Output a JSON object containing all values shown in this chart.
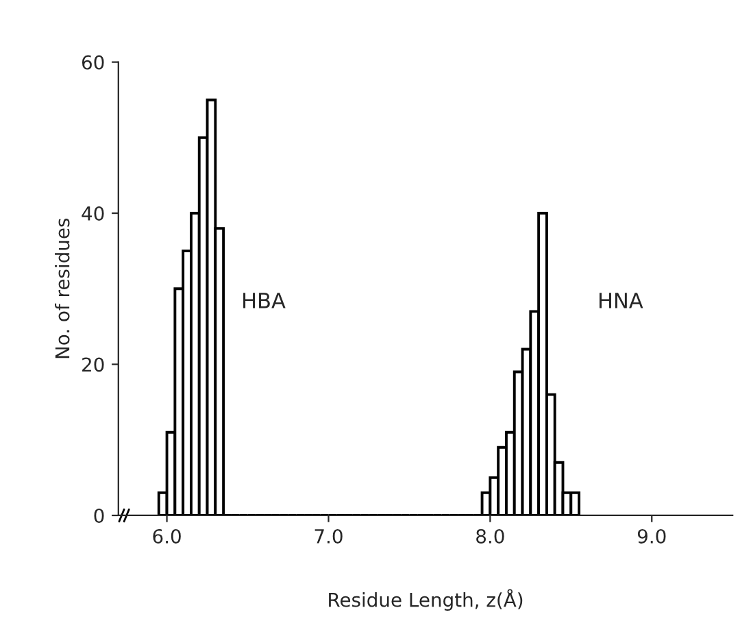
{
  "chart_data": {
    "type": "histogram",
    "xlabel": "Residue Length, z(Å)",
    "ylabel": "No. of residues",
    "bins": [
      5.95,
      6.0,
      6.05,
      6.1,
      6.15,
      6.2,
      6.25,
      6.3,
      6.35,
      6.4,
      6.45,
      6.5,
      6.55,
      6.6,
      6.65,
      6.7,
      6.75,
      6.8,
      6.85,
      6.9,
      6.95,
      7.0,
      7.05,
      7.1,
      7.15,
      7.2,
      7.25,
      7.3,
      7.35,
      7.4,
      7.45,
      7.5,
      7.55,
      7.6,
      7.65,
      7.7,
      7.75,
      7.8,
      7.85,
      7.9,
      7.95,
      8.0,
      8.05,
      8.1,
      8.15,
      8.2,
      8.25,
      8.3,
      8.35,
      8.4,
      8.45,
      8.5,
      8.55
    ],
    "values": [
      3,
      11,
      30,
      35,
      40,
      50,
      55,
      38,
      0,
      0,
      0,
      0,
      0,
      0,
      0,
      0,
      0,
      0,
      0,
      0,
      0,
      0,
      0,
      0,
      0,
      0,
      0,
      0,
      0,
      0,
      0,
      0,
      0,
      0,
      0,
      0,
      0,
      0,
      0,
      0,
      3,
      5,
      9,
      11,
      19,
      22,
      27,
      40,
      16,
      7,
      3,
      3
    ],
    "color": "#000000",
    "annotations": [
      "HBA",
      "HNA"
    ],
    "xlim": [
      5.7,
      9.5
    ],
    "ylim": [
      0,
      60
    ],
    "xticks": [
      {
        "value": 6,
        "label": "6.0"
      },
      {
        "value": 7,
        "label": "7.0"
      },
      {
        "value": 8,
        "label": "8.0"
      },
      {
        "value": 9,
        "label": "9.0"
      }
    ],
    "yticks": [
      0,
      20,
      40,
      60
    ],
    "grid": false,
    "legend": false
  }
}
